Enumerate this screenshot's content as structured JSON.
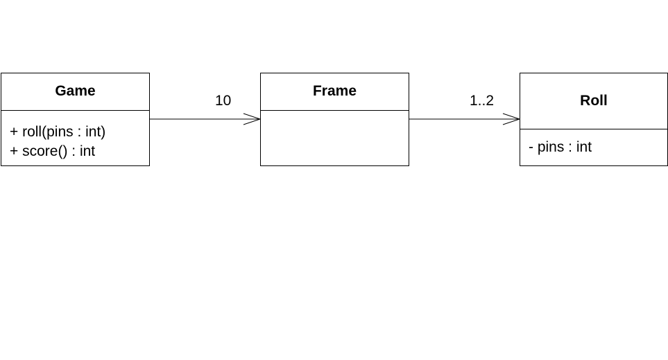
{
  "diagram": {
    "classes": {
      "game": {
        "name": "Game",
        "operations": [
          "+ roll(pins : int)",
          "+ score() : int"
        ]
      },
      "frame": {
        "name": "Frame",
        "members": []
      },
      "roll": {
        "name": "Roll",
        "attributes": [
          "- pins : int"
        ]
      }
    },
    "associations": {
      "game_frame": {
        "multiplicity": "10"
      },
      "frame_roll": {
        "multiplicity": "1..2"
      }
    }
  }
}
